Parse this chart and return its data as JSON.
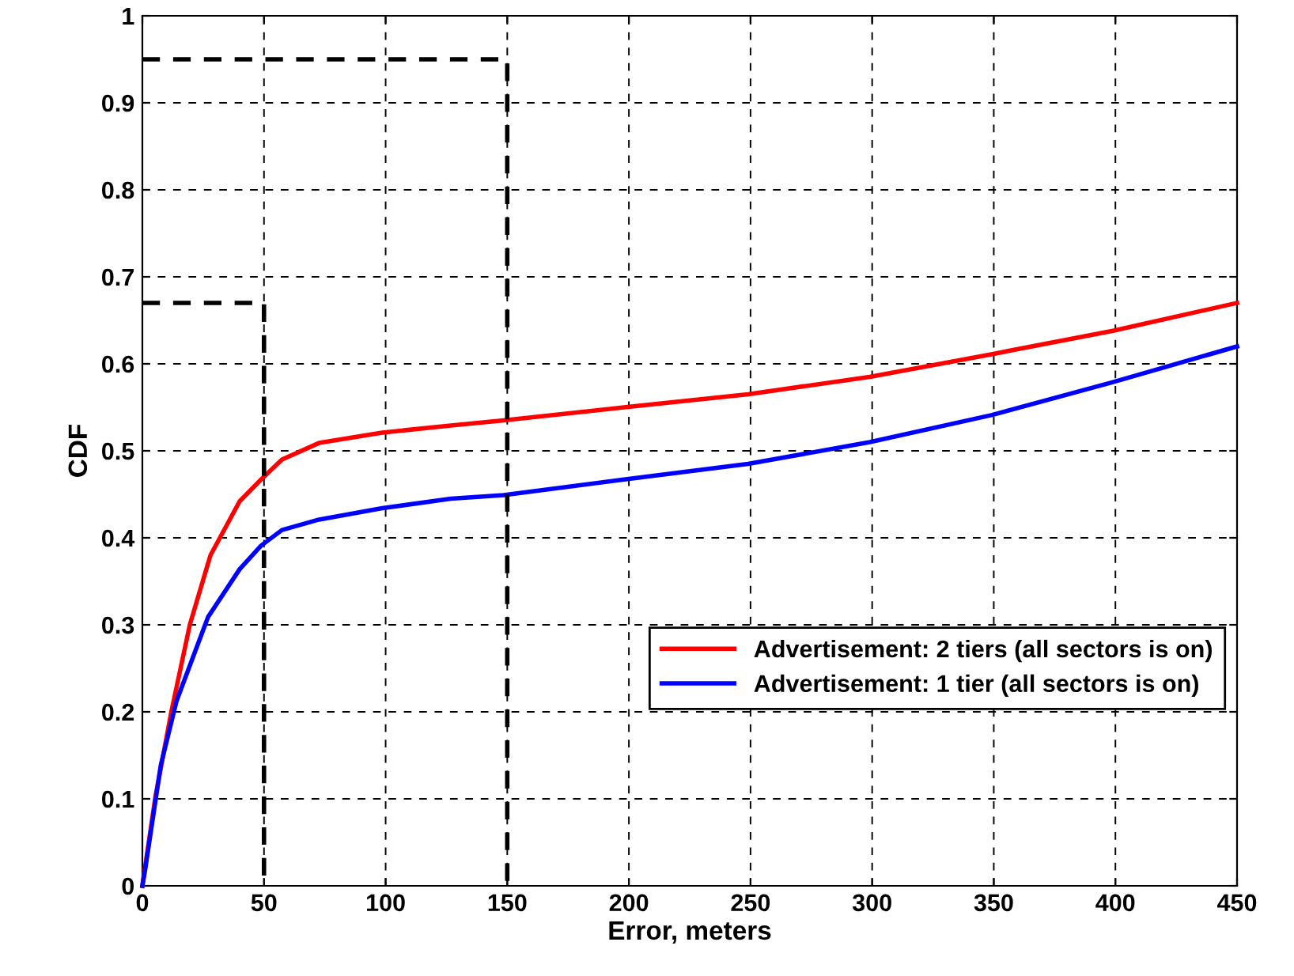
{
  "chart_data": {
    "type": "line",
    "xlabel": "Error, meters",
    "ylabel": "CDF",
    "xlim": [
      0,
      450
    ],
    "ylim": [
      0,
      1
    ],
    "xticks": [
      0,
      50,
      100,
      150,
      200,
      250,
      300,
      350,
      400,
      450
    ],
    "yticks": [
      0,
      0.1,
      0.2,
      0.3,
      0.4,
      0.5,
      0.6,
      0.7,
      0.8,
      0.9,
      1
    ],
    "grid": true,
    "legend": "right",
    "line_style": "solid",
    "marker": "none",
    "series": [
      {
        "name": "Advertisement: 2 tiers (all sectors is on)",
        "color": "#ff0000",
        "x": [
          0,
          5.4,
          11.9,
          19.5,
          28,
          40,
          48.8,
          57.4,
          72.6,
          98.6,
          126.8,
          148.5,
          198,
          249,
          299,
          349,
          399,
          450
        ],
        "values": [
          0,
          0.103,
          0.2,
          0.3,
          0.38,
          0.442,
          0.467,
          0.49,
          0.509,
          0.521,
          0.529,
          0.535,
          0.55,
          0.565,
          0.585,
          0.611,
          0.638,
          0.67
        ]
      },
      {
        "name": "Advertisement: 1 tier (all sectors is on)",
        "color": "#0000ff",
        "x": [
          0,
          1.1,
          7.6,
          14,
          27,
          40,
          48.8,
          57.4,
          72.6,
          98.6,
          126.8,
          148.5,
          198,
          249,
          299,
          349,
          399,
          450
        ],
        "values": [
          0,
          0.018,
          0.139,
          0.212,
          0.309,
          0.364,
          0.391,
          0.409,
          0.421,
          0.434,
          0.445,
          0.449,
          0.467,
          0.485,
          0.51,
          0.541,
          0.579,
          0.62
        ]
      },
      {
        "color": "#000000",
        "line_style": "dashed",
        "x": [
          0,
          50,
          50
        ],
        "values": [
          0.67,
          0.67,
          0
        ]
      },
      {
        "color": "#000000",
        "line_style": "dashed",
        "x": [
          0,
          150,
          150
        ],
        "values": [
          0.95,
          0.95,
          0
        ]
      }
    ]
  }
}
